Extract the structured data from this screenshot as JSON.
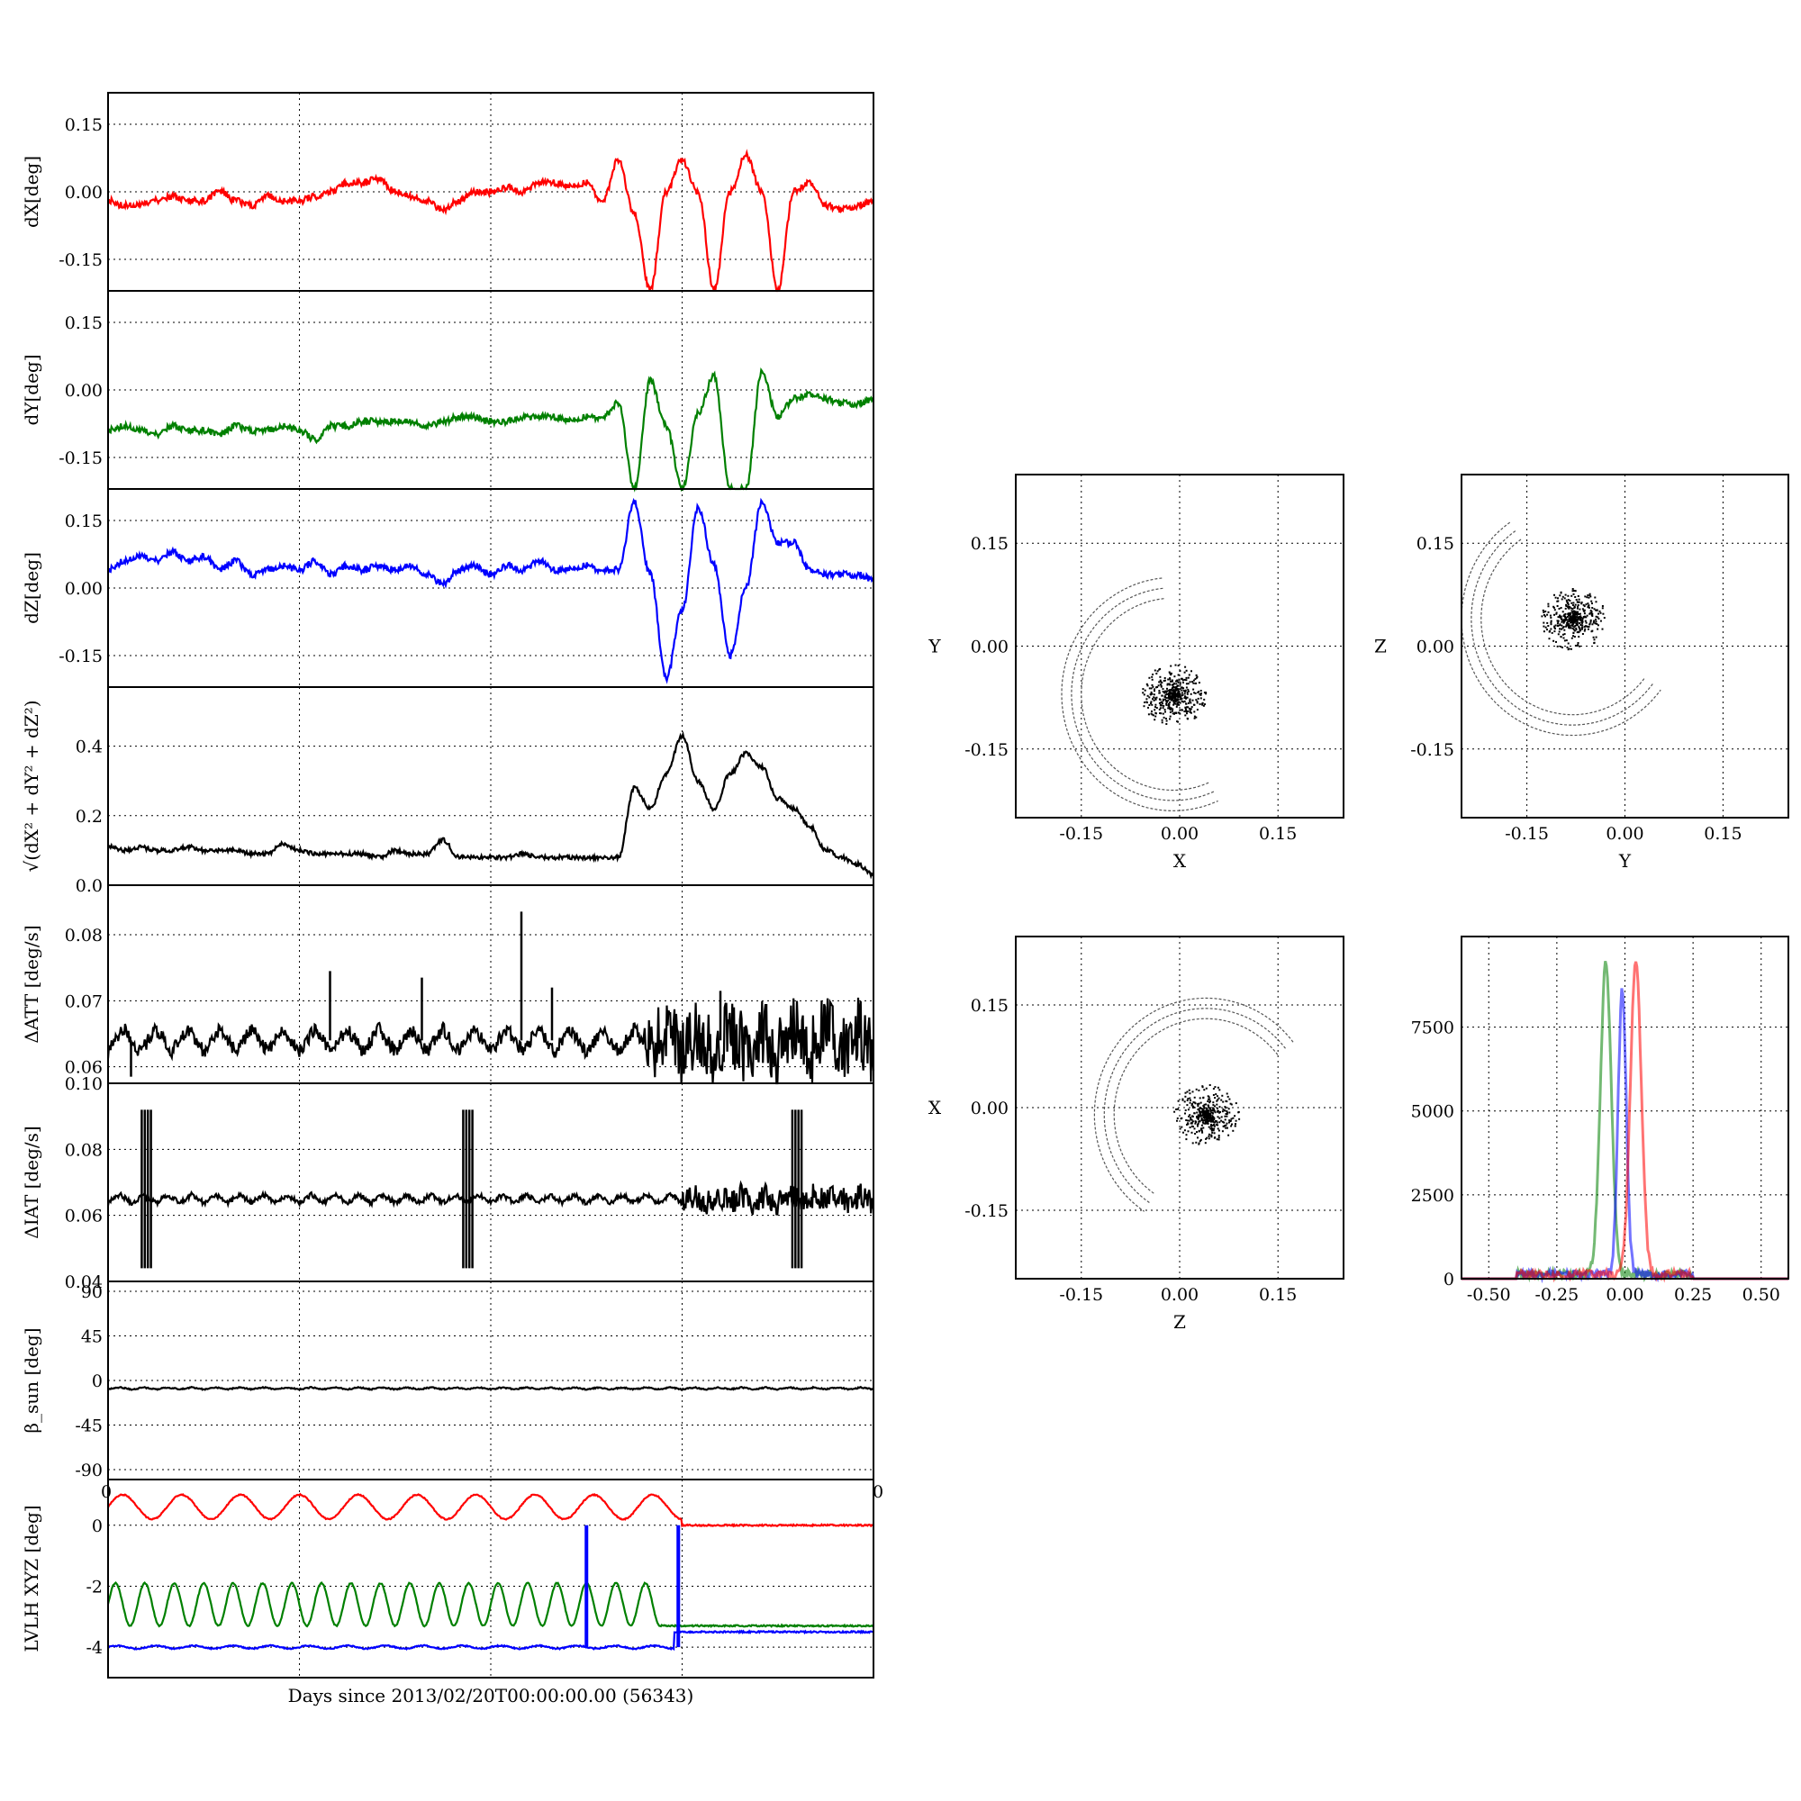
{
  "xlabel": "Days since 2013/02/20T00:00:00.00 (56343)",
  "left_tick_stub": {
    "left": "0",
    "right": "0"
  },
  "colors": {
    "red": "#ff0000",
    "green": "#008000",
    "blue": "#0000ff",
    "black": "#000000"
  },
  "chart_data": [
    {
      "id": "dx",
      "type": "line",
      "ylabel": "dX[deg]",
      "yticks": [
        "0.15",
        "0.00",
        "-0.15"
      ],
      "ytick_values": [
        0.15,
        0.0,
        -0.15
      ],
      "ylim": [
        -0.22,
        0.22
      ],
      "xlim": [
        0,
        1
      ],
      "xtick_positions": [
        0,
        0.25,
        0.5,
        0.75,
        1
      ],
      "series": [
        {
          "color": "red",
          "values": [
            -0.02,
            -0.03,
            -0.03,
            -0.02,
            -0.01,
            -0.02,
            -0.02,
            0.0,
            -0.02,
            -0.03,
            -0.01,
            -0.02,
            -0.02,
            -0.01,
            0.0,
            0.02,
            0.02,
            0.03,
            0.0,
            -0.01,
            -0.02,
            -0.04,
            -0.02,
            0.0,
            0.0,
            0.01,
            0.0,
            0.02,
            0.02,
            0.01,
            0.02,
            -0.02,
            0.07,
            -0.05,
            -0.22,
            0.0,
            0.07,
            0.0,
            -0.22,
            0.0,
            0.08,
            0.0,
            -0.22,
            0.0,
            0.02,
            -0.03,
            -0.04,
            -0.03,
            -0.02
          ]
        }
      ]
    },
    {
      "id": "dy",
      "type": "line",
      "ylabel": "dY[deg]",
      "yticks": [
        "0.15",
        "0.00",
        "-0.15"
      ],
      "ytick_values": [
        0.15,
        0.0,
        -0.15
      ],
      "ylim": [
        -0.22,
        0.22
      ],
      "xlim": [
        0,
        1
      ],
      "xtick_positions": [
        0,
        0.25,
        0.5,
        0.75,
        1
      ],
      "series": [
        {
          "color": "green",
          "values": [
            -0.09,
            -0.08,
            -0.09,
            -0.1,
            -0.08,
            -0.09,
            -0.09,
            -0.1,
            -0.08,
            -0.09,
            -0.09,
            -0.08,
            -0.09,
            -0.11,
            -0.08,
            -0.08,
            -0.07,
            -0.07,
            -0.07,
            -0.07,
            -0.08,
            -0.07,
            -0.06,
            -0.06,
            -0.07,
            -0.07,
            -0.06,
            -0.06,
            -0.06,
            -0.07,
            -0.06,
            -0.06,
            -0.03,
            -0.22,
            0.02,
            -0.08,
            -0.22,
            -0.05,
            0.03,
            -0.22,
            -0.22,
            0.04,
            -0.06,
            -0.02,
            -0.01,
            -0.02,
            -0.03,
            -0.03,
            -0.02
          ]
        }
      ]
    },
    {
      "id": "dz",
      "type": "line",
      "ylabel": "dZ[deg]",
      "yticks": [
        "0.15",
        "0.00",
        "-0.15"
      ],
      "ytick_values": [
        0.15,
        0.0,
        -0.15
      ],
      "ylim": [
        -0.22,
        0.22
      ],
      "xlim": [
        0,
        1
      ],
      "xtick_positions": [
        0,
        0.25,
        0.5,
        0.75,
        1
      ],
      "series": [
        {
          "color": "blue",
          "values": [
            0.04,
            0.06,
            0.07,
            0.06,
            0.08,
            0.06,
            0.07,
            0.04,
            0.06,
            0.03,
            0.04,
            0.05,
            0.04,
            0.06,
            0.03,
            0.05,
            0.04,
            0.05,
            0.04,
            0.05,
            0.03,
            0.01,
            0.04,
            0.05,
            0.03,
            0.05,
            0.04,
            0.06,
            0.04,
            0.04,
            0.05,
            0.04,
            0.04,
            0.19,
            0.03,
            -0.2,
            -0.05,
            0.18,
            0.05,
            -0.15,
            0.0,
            0.19,
            0.1,
            0.1,
            0.04,
            0.03,
            0.03,
            0.03,
            0.02
          ]
        }
      ]
    },
    {
      "id": "norm",
      "type": "line",
      "ylabel": "√(dX² + dY² + dZ²)",
      "yticks": [
        "0.4",
        "0.2",
        "0.0"
      ],
      "ytick_values": [
        0.4,
        0.2,
        0.0
      ],
      "ylim": [
        0.0,
        0.57
      ],
      "xlim": [
        0,
        1
      ],
      "xtick_positions": [
        0,
        0.25,
        0.5,
        0.75,
        1
      ],
      "series": [
        {
          "color": "black",
          "values": [
            0.11,
            0.1,
            0.11,
            0.1,
            0.1,
            0.11,
            0.1,
            0.1,
            0.1,
            0.09,
            0.09,
            0.12,
            0.1,
            0.09,
            0.09,
            0.09,
            0.09,
            0.08,
            0.1,
            0.09,
            0.09,
            0.13,
            0.08,
            0.08,
            0.08,
            0.08,
            0.09,
            0.08,
            0.08,
            0.08,
            0.08,
            0.08,
            0.08,
            0.28,
            0.22,
            0.32,
            0.43,
            0.3,
            0.22,
            0.32,
            0.38,
            0.34,
            0.25,
            0.22,
            0.17,
            0.1,
            0.08,
            0.06,
            0.03
          ]
        }
      ]
    },
    {
      "id": "datt",
      "type": "line",
      "ylabel": "ΔATT [deg/s]",
      "yticks": [
        "0.08",
        "0.07",
        "0.06"
      ],
      "ytick_values": [
        0.08,
        0.07,
        0.06
      ],
      "ylim": [
        0.0575,
        0.0875
      ],
      "xlim": [
        0,
        1
      ],
      "xtick_positions": [
        0,
        0.25,
        0.5,
        0.75,
        1
      ],
      "spikes": [
        [
          0.03,
          0.0585
        ],
        [
          0.29,
          0.0745
        ],
        [
          0.41,
          0.0735
        ],
        [
          0.54,
          0.0835
        ],
        [
          0.8,
          0.0715
        ],
        [
          0.86,
          0.0695
        ],
        [
          0.58,
          0.072
        ]
      ],
      "series": [
        {
          "color": "black",
          "baseline": 0.064,
          "amplitude": 0.0035,
          "cycles": 24,
          "noisy_from": 0.7
        }
      ]
    },
    {
      "id": "diat",
      "type": "line",
      "ylabel": "ΔIAT [deg/s]",
      "yticks": [
        "0.10",
        "0.08",
        "0.06",
        "0.04"
      ],
      "ytick_values": [
        0.1,
        0.08,
        0.06,
        0.04
      ],
      "ylim": [
        0.04,
        0.1
      ],
      "xlim": [
        0,
        1
      ],
      "xtick_positions": [
        0,
        0.25,
        0.5,
        0.75,
        1
      ],
      "bursts": [
        0.05,
        0.47,
        0.9
      ],
      "series": [
        {
          "color": "black",
          "baseline": 0.065,
          "amplitude": 0.0025,
          "cycles": 32,
          "noisy_from": 0.75
        }
      ]
    },
    {
      "id": "beta",
      "type": "line",
      "ylabel": "β_sun [deg]",
      "yticks": [
        "90",
        "45",
        "0",
        "-45",
        "-90"
      ],
      "ytick_values": [
        90,
        45,
        0,
        -45,
        -90
      ],
      "ylim": [
        -100,
        100
      ],
      "xlim": [
        0,
        1
      ],
      "xtick_positions": [
        0,
        0.25,
        0.5,
        0.75,
        1
      ],
      "series": [
        {
          "color": "black",
          "baseline": -8,
          "amplitude": 2,
          "cycles": 32
        }
      ]
    },
    {
      "id": "lvlh",
      "type": "line",
      "ylabel": "LVLH XYZ [deg]",
      "yticks": [
        "0",
        "-2",
        "-4"
      ],
      "ytick_values": [
        0,
        -2,
        -4
      ],
      "ylim": [
        -5.0,
        1.5
      ],
      "xlim": [
        0,
        1
      ],
      "xtick_positions": [
        0,
        0.25,
        0.5,
        0.75,
        1
      ],
      "series": [
        {
          "color": "red",
          "name": "",
          "baseline": 0.6,
          "amplitude": 0.4,
          "cycles": 13,
          "after": 0.0
        },
        {
          "color": "green",
          "name": "",
          "baseline": -2.6,
          "amplitude": 0.7,
          "cycles": 26,
          "after": -3.3
        },
        {
          "color": "blue",
          "name": "",
          "baseline": -4.0,
          "amplitude": 0.05,
          "cycles": 20,
          "after": -3.5
        }
      ]
    },
    {
      "id": "xy",
      "type": "scatter",
      "xlabel": "X",
      "ylabel": "Y",
      "xticks": [
        "-0.15",
        "0.00",
        "0.15"
      ],
      "yticks": [
        "0.15",
        "0.00",
        "-0.15"
      ],
      "xlim": [
        -0.25,
        0.25
      ],
      "ylim": [
        -0.25,
        0.25
      ],
      "cluster_center": [
        -0.01,
        -0.07
      ]
    },
    {
      "id": "yz",
      "type": "scatter",
      "xlabel": "Y",
      "ylabel": "Z",
      "xticks": [
        "-0.15",
        "0.00",
        "0.15"
      ],
      "yticks": [
        "0.15",
        "0.00",
        "-0.15"
      ],
      "xlim": [
        -0.25,
        0.25
      ],
      "ylim": [
        -0.25,
        0.25
      ],
      "cluster_center": [
        -0.08,
        0.04
      ]
    },
    {
      "id": "zx",
      "type": "scatter",
      "xlabel": "Z",
      "ylabel": "X",
      "xticks": [
        "-0.15",
        "0.00",
        "0.15"
      ],
      "yticks": [
        "0.15",
        "0.00",
        "-0.15"
      ],
      "xlim": [
        -0.25,
        0.25
      ],
      "ylim": [
        -0.25,
        0.25
      ],
      "cluster_center": [
        0.04,
        -0.01
      ]
    },
    {
      "id": "hist",
      "type": "line",
      "xticks": [
        "-0.50",
        "-0.25",
        "0.00",
        "0.25",
        "0.50"
      ],
      "xtick_values": [
        -0.5,
        -0.25,
        0.0,
        0.25,
        0.5
      ],
      "yticks": [
        "7500",
        "5000",
        "2500",
        "0"
      ],
      "ytick_values": [
        7500,
        5000,
        2500,
        0
      ],
      "xlim": [
        -0.6,
        0.6
      ],
      "ylim": [
        0,
        10200
      ],
      "series": [
        {
          "color": "green",
          "peak_x": -0.07,
          "peak": 9300,
          "width": 0.02
        },
        {
          "color": "blue",
          "peak_x": -0.01,
          "peak": 8500,
          "width": 0.015
        },
        {
          "color": "red",
          "peak_x": 0.04,
          "peak": 9400,
          "width": 0.02
        }
      ]
    }
  ]
}
